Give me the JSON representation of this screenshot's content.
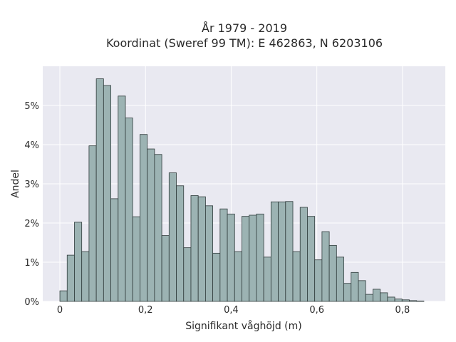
{
  "chart_data": {
    "type": "bar",
    "title": "År 1979 - 2019",
    "subtitle": "Koordinat (Sweref 99 TM): E 462863, N 6203106",
    "xlabel": "Signifikant våghöjd (m)",
    "ylabel": "Andel",
    "bin_width": 0.017,
    "x_start": 0,
    "xlim": [
      -0.04,
      0.9
    ],
    "ylim": [
      0,
      6
    ],
    "x_ticks": [
      0,
      0.2,
      0.4,
      0.6,
      0.8
    ],
    "x_tick_labels": [
      "0",
      "0,2",
      "0,4",
      "0,6",
      "0,8"
    ],
    "y_ticks": [
      0,
      1,
      2,
      3,
      4,
      5
    ],
    "y_tick_labels": [
      "0%",
      "1%",
      "2%",
      "3%",
      "4%",
      "5%"
    ],
    "grid": true,
    "background": "#e9e9f1",
    "bar_color": "#9cb3b3",
    "bar_edge": "#2f3b3b",
    "values": [
      0.27,
      1.18,
      2.02,
      1.27,
      3.97,
      5.68,
      5.51,
      2.62,
      5.24,
      4.68,
      2.16,
      4.26,
      3.89,
      3.75,
      1.68,
      3.28,
      2.95,
      1.37,
      2.7,
      2.67,
      2.44,
      1.23,
      2.36,
      2.23,
      1.27,
      2.17,
      2.2,
      2.23,
      1.13,
      2.54,
      2.54,
      2.55,
      1.27,
      2.4,
      2.17,
      1.06,
      1.78,
      1.43,
      1.13,
      0.46,
      0.74,
      0.53,
      0.18,
      0.31,
      0.22,
      0.11,
      0.06,
      0.04,
      0.02,
      0.01
    ]
  }
}
